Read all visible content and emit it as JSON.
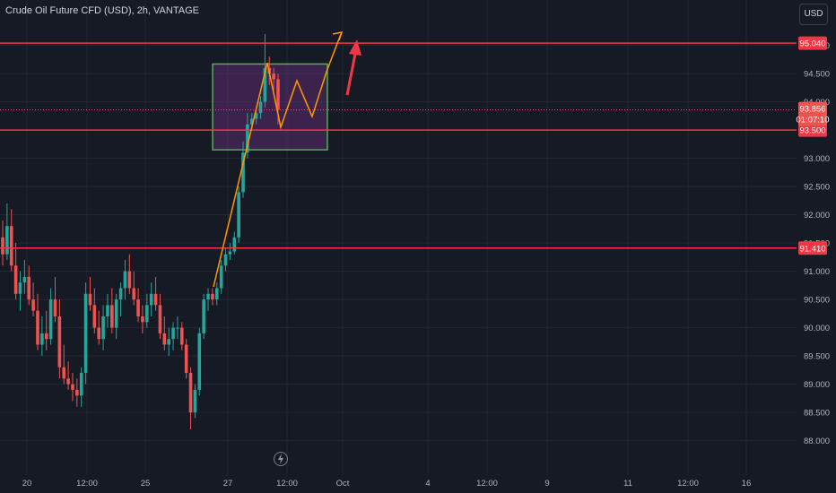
{
  "header": {
    "title": "Crude Oil Future CFD (USD), 2h, VANTAGE",
    "currency_button": "USD"
  },
  "colors": {
    "background": "#161a25",
    "up_candle": "#26a69a",
    "down_candle": "#ef5350",
    "level_line": "#f23645",
    "zone_border": "#4caf50",
    "zone_fill": "#5b2c6f",
    "path_line": "#ff9800"
  },
  "event_icon": "lightning-icon",
  "chart_data": {
    "type": "candlestick",
    "title": "Crude Oil Future CFD (USD), 2h, VANTAGE",
    "y_axis": {
      "ticks": [
        "95.000",
        "94.500",
        "94.000",
        "93.000",
        "92.500",
        "92.000",
        "91.500",
        "91.000",
        "90.500",
        "90.000",
        "89.500",
        "89.000",
        "88.500",
        "88.000"
      ]
    },
    "x_axis": {
      "ticks": [
        "20",
        "12:00",
        "25",
        "27",
        "12:00",
        "Oct",
        "4",
        "12:00",
        "9",
        "11",
        "12:00",
        "16"
      ]
    },
    "price_levels": [
      {
        "label": "95.040",
        "value": 95.04
      },
      {
        "label": "93.500",
        "value": 93.5
      },
      {
        "label": "91.410",
        "value": 91.41
      }
    ],
    "current_price": {
      "value": "93.856",
      "countdown": "01:07:10"
    },
    "zone": {
      "top": 94.67,
      "bottom": 93.15
    },
    "candles": [
      [
        91.6,
        91.9,
        91.1,
        91.3
      ],
      [
        91.3,
        92.2,
        91.2,
        91.8
      ],
      [
        91.8,
        92.1,
        91.0,
        91.1
      ],
      [
        91.1,
        91.5,
        90.5,
        90.6
      ],
      [
        90.6,
        91.0,
        90.3,
        90.8
      ],
      [
        90.8,
        91.2,
        90.6,
        90.9
      ],
      [
        90.9,
        91.1,
        90.4,
        90.5
      ],
      [
        90.5,
        90.8,
        90.2,
        90.3
      ],
      [
        90.3,
        90.6,
        89.6,
        89.7
      ],
      [
        89.7,
        90.2,
        89.5,
        89.9
      ],
      [
        89.9,
        90.3,
        89.6,
        89.8
      ],
      [
        89.8,
        90.7,
        89.7,
        90.5
      ],
      [
        90.5,
        90.9,
        90.1,
        90.2
      ],
      [
        90.2,
        90.5,
        89.1,
        89.3
      ],
      [
        89.3,
        89.7,
        89.0,
        89.1
      ],
      [
        89.1,
        89.4,
        88.9,
        89.0
      ],
      [
        89.0,
        89.2,
        88.7,
        88.9
      ],
      [
        88.9,
        89.1,
        88.6,
        88.8
      ],
      [
        88.8,
        89.3,
        88.6,
        89.2
      ],
      [
        89.2,
        90.8,
        89.0,
        90.6
      ],
      [
        90.6,
        90.9,
        90.3,
        90.4
      ],
      [
        90.4,
        90.7,
        89.9,
        90.0
      ],
      [
        90.0,
        90.3,
        89.7,
        89.8
      ],
      [
        89.8,
        90.4,
        89.6,
        90.2
      ],
      [
        90.2,
        90.6,
        90.0,
        90.4
      ],
      [
        90.4,
        90.7,
        89.9,
        90.0
      ],
      [
        90.0,
        90.6,
        89.8,
        90.5
      ],
      [
        90.5,
        90.8,
        90.2,
        90.7
      ],
      [
        90.7,
        91.2,
        90.5,
        91.0
      ],
      [
        91.0,
        91.3,
        90.6,
        90.7
      ],
      [
        90.7,
        91.0,
        90.4,
        90.5
      ],
      [
        90.5,
        90.7,
        90.1,
        90.2
      ],
      [
        90.2,
        90.4,
        89.9,
        90.1
      ],
      [
        90.1,
        90.6,
        90.0,
        90.4
      ],
      [
        90.4,
        90.8,
        90.2,
        90.6
      ],
      [
        90.6,
        90.9,
        90.3,
        90.4
      ],
      [
        90.4,
        90.6,
        89.8,
        89.9
      ],
      [
        89.9,
        90.2,
        89.6,
        89.7
      ],
      [
        89.7,
        90.0,
        89.5,
        89.8
      ],
      [
        89.8,
        90.1,
        89.6,
        90.0
      ],
      [
        90.0,
        90.2,
        89.8,
        90.0
      ],
      [
        90.0,
        90.1,
        89.6,
        89.7
      ],
      [
        89.7,
        89.8,
        89.1,
        89.2
      ],
      [
        89.2,
        89.3,
        88.2,
        88.5
      ],
      [
        88.5,
        89.0,
        88.4,
        88.9
      ],
      [
        88.9,
        90.0,
        88.8,
        89.9
      ],
      [
        89.9,
        90.6,
        89.8,
        90.5
      ],
      [
        90.5,
        90.7,
        90.3,
        90.6
      ],
      [
        90.6,
        90.7,
        90.4,
        90.5
      ],
      [
        90.5,
        90.8,
        90.4,
        90.7
      ],
      [
        90.7,
        91.2,
        90.6,
        91.1
      ],
      [
        91.1,
        91.4,
        91.0,
        91.3
      ],
      [
        91.3,
        91.5,
        91.2,
        91.35
      ],
      [
        91.35,
        91.7,
        91.3,
        91.6
      ],
      [
        91.6,
        92.5,
        91.5,
        92.4
      ],
      [
        92.4,
        93.3,
        92.3,
        93.1
      ],
      [
        93.1,
        93.8,
        93.0,
        93.6
      ],
      [
        93.6,
        93.8,
        93.5,
        93.7
      ],
      [
        93.7,
        93.9,
        93.6,
        93.8
      ],
      [
        93.8,
        94.1,
        93.7,
        94.0
      ],
      [
        94.0,
        95.2,
        93.9,
        94.6
      ],
      [
        94.6,
        94.8,
        94.3,
        94.5
      ],
      [
        94.5,
        94.6,
        94.2,
        94.4
      ],
      [
        94.4,
        94.5,
        93.6,
        93.86
      ]
    ]
  }
}
